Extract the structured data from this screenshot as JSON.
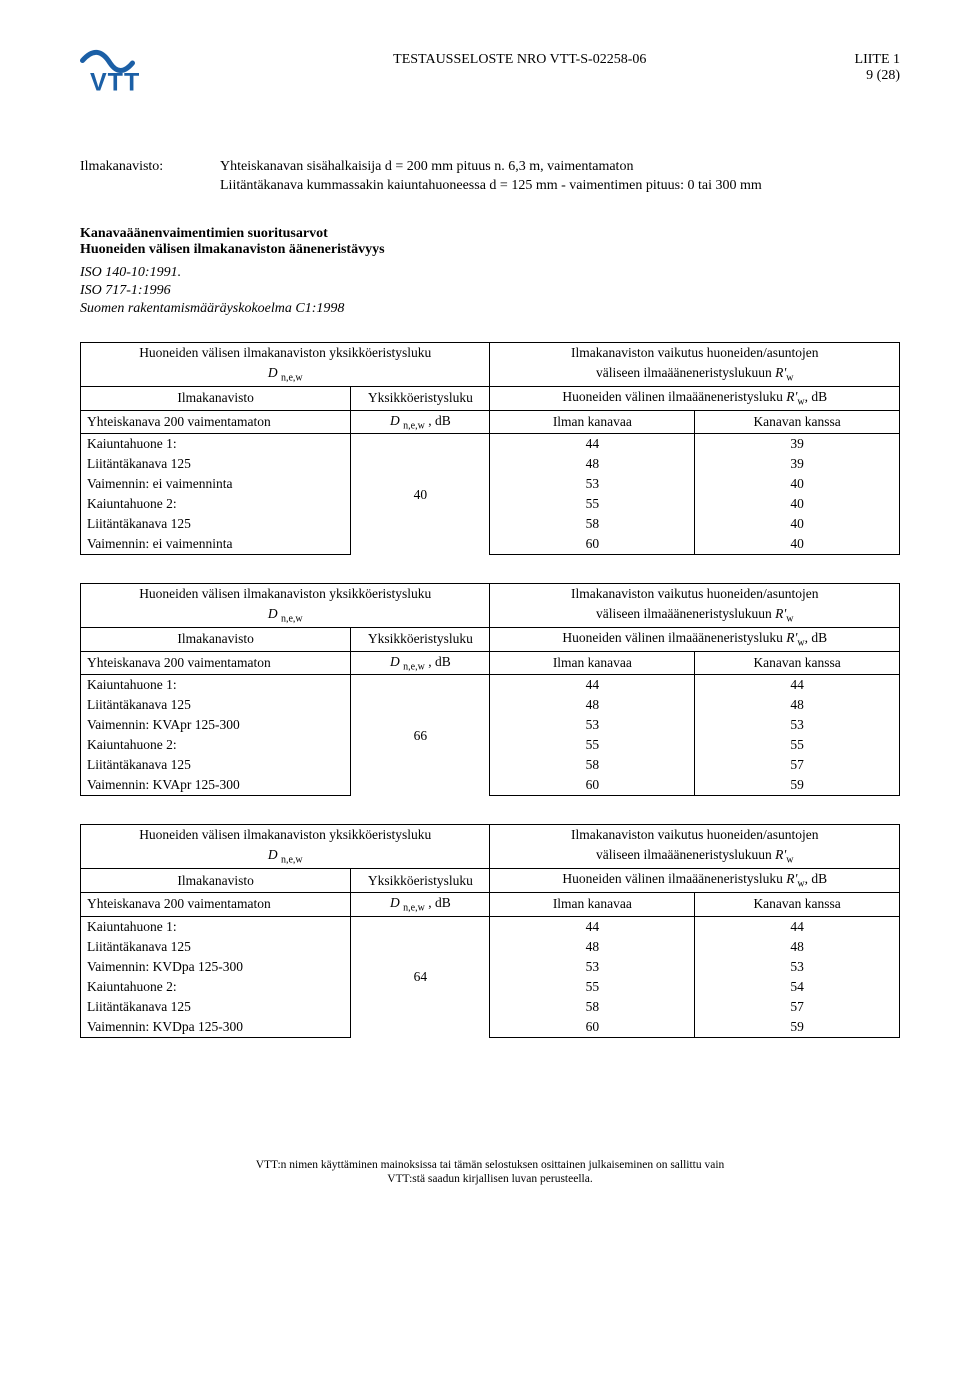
{
  "header": {
    "title": "TESTAUSSELOSTE NRO VTT-S-02258-06",
    "liite": "LIITE 1",
    "page": "9 (28)"
  },
  "intro": {
    "label": "Ilmakanavisto:",
    "line1": "Yhteiskanavan sisähalkaisija d = 200 mm pituus n. 6,3 m, vaimentamaton",
    "line2": "Liitäntäkanava kummassakin kaiuntahuoneessa d = 125 mm - vaimentimen pituus: 0 tai 300 mm"
  },
  "headings": {
    "h1": "Kanavaäänenvaimentimien suoritusarvot",
    "h2": "Huoneiden välisen ilmakanaviston ääneneristävyys"
  },
  "iso": {
    "l1": "ISO 140-10:1991.",
    "l2": "ISO 717-1:1996",
    "l3": "Suomen rakentamismääräyskokoelma C1:1998"
  },
  "tableHeaders": {
    "leftTop": "Huoneiden välisen ilmakanaviston yksikköeristysluku",
    "leftSub": "D",
    "leftSubIdx": "n,e,w",
    "rightTop": "Ilmakanaviston vaikutus huoneiden/asuntojen",
    "rightSub1": "väliseen ilmaääneneristyslukuun ",
    "rightSubR": "R'",
    "rightSubW": "w",
    "col1": "Ilmakanavisto",
    "col2": "Yksikköeristysluku",
    "col34": "Huoneiden välinen ilmaääneneristysluku ",
    "col34R": "R'",
    "col34W": "w",
    "col34Unit": ", dB",
    "row2c1": "Yhteiskanava 200  vaimentamaton",
    "row2c2a": "D",
    "row2c2aIdx": "n,e,w",
    "row2c2bComma": " ,",
    "row2c2bSpace": " , ",
    "row2c2unit": "dB",
    "row2c3": "Ilman kanavaa",
    "row2c4": "Kanavan kanssa"
  },
  "tables": [
    {
      "centerValue": "40",
      "rows": [
        {
          "label": "Kaiuntahuone 1:",
          "a": "44",
          "b": "39"
        },
        {
          "label": "Liitäntäkanava 125",
          "a": "48",
          "b": "39"
        },
        {
          "label": "Vaimennin: ei vaimenninta",
          "a": "53",
          "b": "40"
        },
        {
          "label": "Kaiuntahuone 2:",
          "a": "55",
          "b": "40"
        },
        {
          "label": "Liitäntäkanava 125",
          "a": "58",
          "b": "40"
        },
        {
          "label": "Vaimennin: ei vaimenninta",
          "a": "60",
          "b": "40"
        }
      ]
    },
    {
      "centerValue": "66",
      "rows": [
        {
          "label": "Kaiuntahuone 1:",
          "a": "44",
          "b": "44"
        },
        {
          "label": "Liitäntäkanava 125",
          "a": "48",
          "b": "48"
        },
        {
          "label": "Vaimennin: KVApr 125-300",
          "a": "53",
          "b": "53"
        },
        {
          "label": "Kaiuntahuone 2:",
          "a": "55",
          "b": "55"
        },
        {
          "label": "Liitäntäkanava 125",
          "a": "58",
          "b": "57"
        },
        {
          "label": "Vaimennin: KVApr 125-300",
          "a": "60",
          "b": "59"
        }
      ]
    },
    {
      "centerValue": "64",
      "rows": [
        {
          "label": "Kaiuntahuone 1:",
          "a": "44",
          "b": "44"
        },
        {
          "label": "Liitäntäkanava 125",
          "a": "48",
          "b": "48"
        },
        {
          "label": "Vaimennin: KVDpa 125-300",
          "a": "53",
          "b": "53"
        },
        {
          "label": "Kaiuntahuone 2:",
          "a": "55",
          "b": "54"
        },
        {
          "label": "Liitäntäkanava 125",
          "a": "58",
          "b": "57"
        },
        {
          "label": "Vaimennin: KVDpa 125-300",
          "a": "60",
          "b": "59"
        }
      ]
    }
  ],
  "footer": {
    "l1": "VTT:n nimen käyttäminen mainoksissa tai tämän selostuksen osittainen julkaiseminen on sallittu vain",
    "l2": "VTT:stä saadun kirjallisen luvan perusteella."
  }
}
